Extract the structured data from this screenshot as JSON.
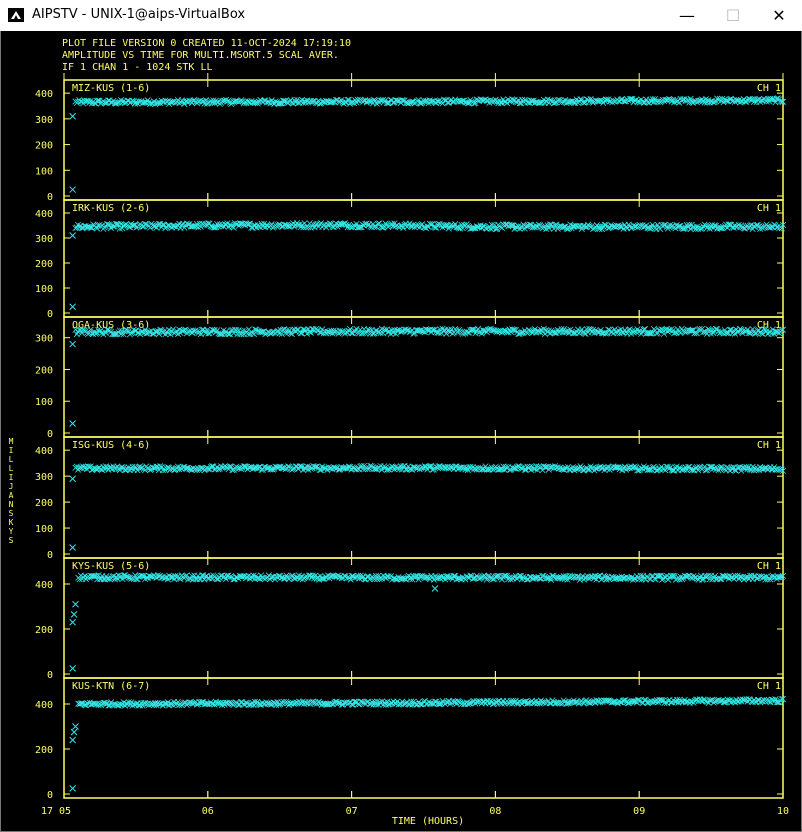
{
  "window": {
    "title": "AIPSTV - UNIX-1@aips-VirtualBox",
    "minimize_glyph": "—",
    "maximize_glyph": "☐",
    "close_glyph": "✕",
    "app_icon": "aips-tv-icon"
  },
  "header": {
    "line1": "PLOT FILE VERSION 0  CREATED 11-OCT-2024 17:19:10",
    "line2": "AMPLITUDE VS TIME  FOR  MULTI.MSORT.5  SCAL AVER.",
    "line3": "IF 1   CHAN 1 - 1024   STK LL"
  },
  "colors": {
    "axis": "#ffff66",
    "data": "#33e6e6",
    "background": "#000000"
  },
  "chart_data": {
    "type": "scatter",
    "marker": "x",
    "xlabel": "TIME (HOURS)",
    "ylabel": "MILLIJANSKYS",
    "x_ticks": [
      {
        "label": "17 05",
        "value": 5
      },
      {
        "label": "06",
        "value": 6
      },
      {
        "label": "07",
        "value": 7
      },
      {
        "label": "08",
        "value": 8
      },
      {
        "label": "09",
        "value": 9
      },
      {
        "label": "10",
        "value": 10
      }
    ],
    "xlim": [
      5,
      10
    ],
    "panels": [
      {
        "baseline": "MIZ-KUS (1-6)",
        "channel": "CH 1",
        "ylim": [
          0,
          420
        ],
        "y_ticks": [
          0,
          100,
          200,
          300,
          400
        ],
        "outliers": [
          {
            "x": 5.06,
            "y": 310
          },
          {
            "x": 5.06,
            "y": 25
          }
        ],
        "series_profile": [
          {
            "x": 5.08,
            "y": 365
          },
          {
            "x": 7.5,
            "y": 367
          },
          {
            "x": 10.0,
            "y": 372
          }
        ],
        "spread": 10
      },
      {
        "baseline": "IRK-KUS (2-6)",
        "channel": "CH 1",
        "ylim": [
          0,
          420
        ],
        "y_ticks": [
          0,
          100,
          200,
          300,
          400
        ],
        "outliers": [
          {
            "x": 5.06,
            "y": 310
          },
          {
            "x": 5.06,
            "y": 25
          }
        ],
        "series_profile": [
          {
            "x": 5.08,
            "y": 345
          },
          {
            "x": 6.0,
            "y": 350
          },
          {
            "x": 7.0,
            "y": 352
          },
          {
            "x": 8.0,
            "y": 345
          },
          {
            "x": 10.0,
            "y": 345
          }
        ],
        "spread": 12
      },
      {
        "baseline": "OGA-KUS (3-6)",
        "channel": "CH 1",
        "ylim": [
          0,
          340
        ],
        "y_ticks": [
          0,
          100,
          200,
          300
        ],
        "outliers": [
          {
            "x": 5.06,
            "y": 280
          },
          {
            "x": 5.06,
            "y": 30
          }
        ],
        "series_profile": [
          {
            "x": 5.08,
            "y": 318
          },
          {
            "x": 7.5,
            "y": 320
          },
          {
            "x": 10.0,
            "y": 320
          }
        ],
        "spread": 10
      },
      {
        "baseline": "ISG-KUS (4-6)",
        "channel": "CH 1",
        "ylim": [
          0,
          420
        ],
        "y_ticks": [
          0,
          100,
          200,
          300,
          400
        ],
        "outliers": [
          {
            "x": 5.06,
            "y": 290
          },
          {
            "x": 5.06,
            "y": 25
          }
        ],
        "series_profile": [
          {
            "x": 5.08,
            "y": 330
          },
          {
            "x": 7.5,
            "y": 332
          },
          {
            "x": 10.0,
            "y": 328
          }
        ],
        "spread": 10
      },
      {
        "baseline": "KYS-KUS (5-6)",
        "channel": "CH 1",
        "ylim": [
          0,
          480
        ],
        "y_ticks": [
          0,
          200,
          400
        ],
        "outliers": [
          {
            "x": 5.06,
            "y": 230
          },
          {
            "x": 5.07,
            "y": 265
          },
          {
            "x": 5.08,
            "y": 310
          },
          {
            "x": 5.06,
            "y": 25
          },
          {
            "x": 7.58,
            "y": 380
          }
        ],
        "series_profile": [
          {
            "x": 5.1,
            "y": 430
          },
          {
            "x": 7.5,
            "y": 428
          },
          {
            "x": 10.0,
            "y": 428
          }
        ],
        "spread": 12
      },
      {
        "baseline": "KUS-KTN (6-7)",
        "channel": "CH 1",
        "ylim": [
          0,
          480
        ],
        "y_ticks": [
          0,
          200,
          400
        ],
        "outliers": [
          {
            "x": 5.06,
            "y": 240
          },
          {
            "x": 5.07,
            "y": 275
          },
          {
            "x": 5.08,
            "y": 300
          },
          {
            "x": 5.06,
            "y": 25
          }
        ],
        "series_profile": [
          {
            "x": 5.1,
            "y": 400
          },
          {
            "x": 7.5,
            "y": 405
          },
          {
            "x": 10.0,
            "y": 415
          }
        ],
        "spread": 10
      }
    ]
  }
}
